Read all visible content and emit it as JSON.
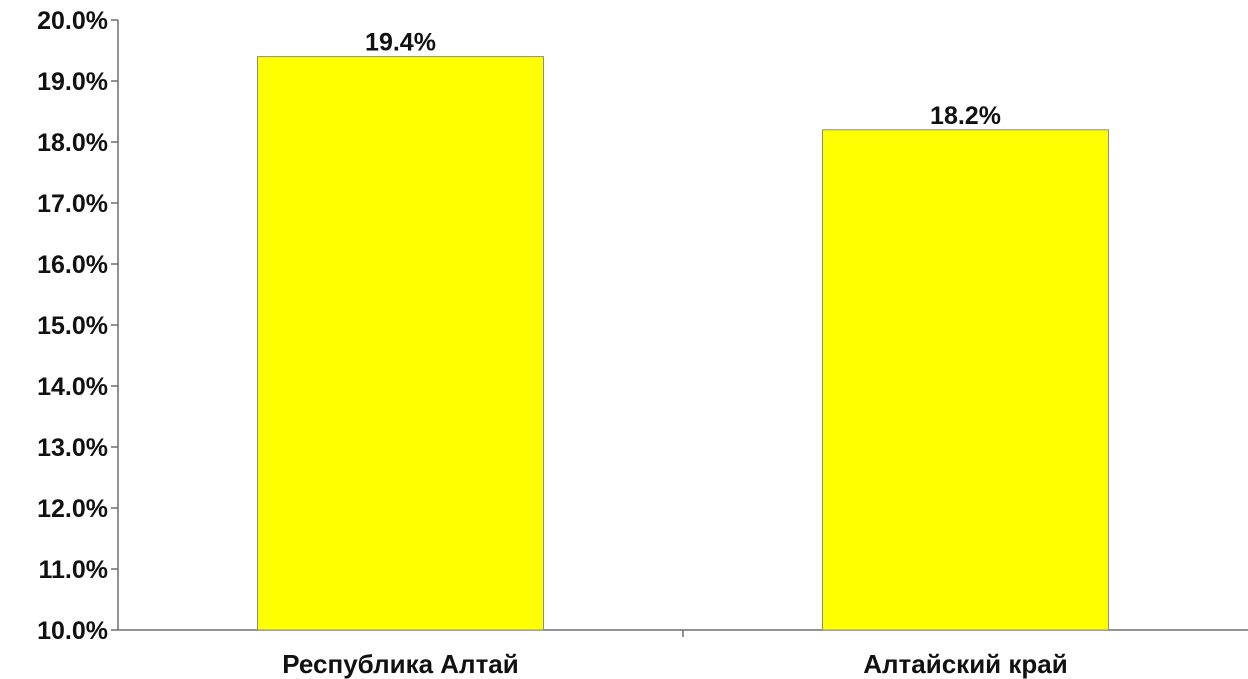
{
  "chart_data": {
    "type": "bar",
    "categories": [
      "Республика Алтай",
      "Алтайский край"
    ],
    "values": [
      19.4,
      18.2
    ],
    "value_labels": [
      "19.4%",
      "18.2%"
    ],
    "ylim": [
      10,
      20
    ],
    "yticks": [
      10,
      11,
      12,
      13,
      14,
      15,
      16,
      17,
      18,
      19,
      20
    ],
    "ytick_labels": [
      "10.0%",
      "11.0%",
      "12.0%",
      "13.0%",
      "14.0%",
      "15.0%",
      "16.0%",
      "17.0%",
      "18.0%",
      "19.0%",
      "20.0%"
    ],
    "title": "",
    "xlabel": "",
    "ylabel": "",
    "grid": false,
    "legend": "none",
    "colors": {
      "bar": "#ffff00",
      "bar_stroke": "#8c8c8c",
      "axis": "#6e6e6e"
    }
  }
}
